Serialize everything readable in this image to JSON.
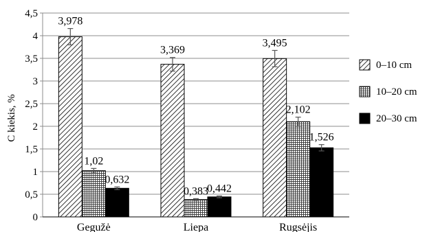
{
  "chart_data": {
    "type": "bar",
    "title": "",
    "xlabel": "",
    "ylabel": "C kiekis, %",
    "ylim": [
      0,
      4.5
    ],
    "ytick_values": [
      0,
      0.5,
      1,
      1.5,
      2,
      2.5,
      3,
      3.5,
      4,
      4.5
    ],
    "ytick_labels": [
      "0",
      "0,5",
      "1",
      "1,5",
      "2",
      "2,5",
      "3",
      "3,5",
      "4",
      "4,5"
    ],
    "grid": "horizontal",
    "legend_position": "right",
    "categories": [
      "Gegužė",
      "Liepa",
      "Rugsėjis"
    ],
    "series": [
      {
        "name": "0–10 cm",
        "pattern": "diagonal-hatch",
        "values": [
          3.978,
          3.369,
          3.495
        ],
        "labels": [
          "3,978",
          "3,369",
          "3,495"
        ],
        "errors": [
          0.18,
          0.15,
          0.18
        ]
      },
      {
        "name": "10–20 cm",
        "pattern": "grid-hatch",
        "values": [
          1.02,
          0.383,
          2.102
        ],
        "labels": [
          "1,02",
          "0,383",
          "2,102"
        ],
        "errors": [
          0.05,
          0.02,
          0.1
        ]
      },
      {
        "name": "20–30 cm",
        "pattern": "solid-black",
        "values": [
          0.632,
          0.442,
          1.526
        ],
        "labels": [
          "0,632",
          "0,442",
          "1,526"
        ],
        "errors": [
          0.03,
          0.02,
          0.07
        ]
      }
    ]
  }
}
